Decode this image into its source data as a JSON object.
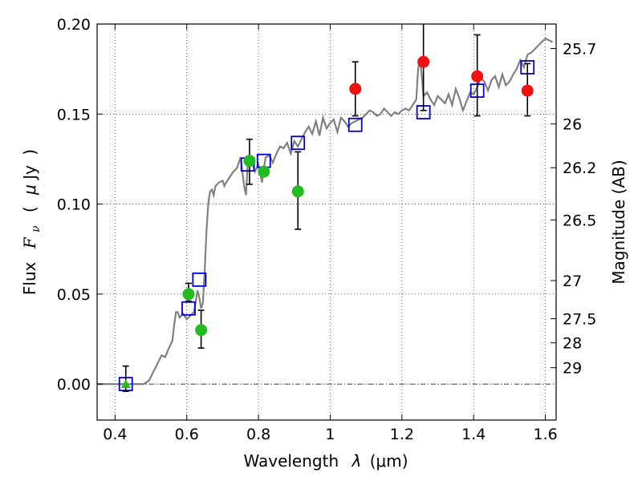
{
  "chart_data": {
    "type": "scatter",
    "xlabel_prefix": "Wavelength",
    "xlabel_symbol": "λ",
    "xlabel_unit": "(μm)",
    "ylabel_prefix": "Flux",
    "ylabel_symbol": "F",
    "ylabel_subscript": "ν",
    "ylabel_unit_open": "(",
    "ylabel_unit_mu": "μ",
    "ylabel_unit_rest": "Jy",
    "ylabel_unit_close": ")",
    "y2label": "Magnitude (AB)",
    "xlim": [
      0.35,
      1.63
    ],
    "ylim": [
      -0.02,
      0.2
    ],
    "x_ticks": [
      {
        "value": 0.4,
        "label": "0.4"
      },
      {
        "value": 0.6,
        "label": "0.6"
      },
      {
        "value": 0.8,
        "label": "0.8"
      },
      {
        "value": 1.0,
        "label": "1"
      },
      {
        "value": 1.2,
        "label": "1.2"
      },
      {
        "value": 1.4,
        "label": "1.4"
      },
      {
        "value": 1.6,
        "label": "1.6"
      }
    ],
    "y_ticks": [
      {
        "value": 0.0,
        "label": "0.00"
      },
      {
        "value": 0.05,
        "label": "0.05"
      },
      {
        "value": 0.1,
        "label": "0.10"
      },
      {
        "value": 0.15,
        "label": "0.15"
      },
      {
        "value": 0.2,
        "label": "0.20"
      }
    ],
    "mag_ticks": [
      {
        "value": 0.1864,
        "label": "25.7"
      },
      {
        "value": 0.1445,
        "label": "26"
      },
      {
        "value": 0.1202,
        "label": "26.2"
      },
      {
        "value": 0.0912,
        "label": "26.5"
      },
      {
        "value": 0.0575,
        "label": "27"
      },
      {
        "value": 0.0363,
        "label": "27.5"
      },
      {
        "value": 0.0229,
        "label": "28"
      },
      {
        "value": 0.0091,
        "label": "29"
      }
    ],
    "grid": true,
    "zero_line": true,
    "colors": {
      "model": "#808080",
      "template": "#0000cc",
      "optical": "#22bb22",
      "nir": "#ee1111",
      "errorbar": "#000000"
    },
    "series": [
      {
        "kind": "line",
        "color": "#808080",
        "points": [
          [
            0.35,
            0.0
          ],
          [
            0.45,
            0.0
          ],
          [
            0.48,
            0.0
          ],
          [
            0.495,
            0.002
          ],
          [
            0.51,
            0.008
          ],
          [
            0.52,
            0.012
          ],
          [
            0.53,
            0.016
          ],
          [
            0.54,
            0.015
          ],
          [
            0.55,
            0.02
          ],
          [
            0.56,
            0.024
          ],
          [
            0.565,
            0.033
          ],
          [
            0.57,
            0.04
          ],
          [
            0.575,
            0.04
          ],
          [
            0.58,
            0.037
          ],
          [
            0.59,
            0.039
          ],
          [
            0.6,
            0.036
          ],
          [
            0.61,
            0.038
          ],
          [
            0.62,
            0.04
          ],
          [
            0.625,
            0.046
          ],
          [
            0.63,
            0.052
          ],
          [
            0.635,
            0.048
          ],
          [
            0.64,
            0.042
          ],
          [
            0.645,
            0.045
          ],
          [
            0.65,
            0.063
          ],
          [
            0.655,
            0.085
          ],
          [
            0.66,
            0.1
          ],
          [
            0.665,
            0.107
          ],
          [
            0.67,
            0.108
          ],
          [
            0.675,
            0.105
          ],
          [
            0.68,
            0.11
          ],
          [
            0.69,
            0.112
          ],
          [
            0.7,
            0.113
          ],
          [
            0.705,
            0.11
          ],
          [
            0.71,
            0.112
          ],
          [
            0.72,
            0.115
          ],
          [
            0.73,
            0.118
          ],
          [
            0.74,
            0.12
          ],
          [
            0.75,
            0.126
          ],
          [
            0.76,
            0.11
          ],
          [
            0.765,
            0.105
          ],
          [
            0.77,
            0.122
          ],
          [
            0.78,
            0.125
          ],
          [
            0.79,
            0.118
          ],
          [
            0.8,
            0.122
          ],
          [
            0.81,
            0.112
          ],
          [
            0.815,
            0.12
          ],
          [
            0.82,
            0.126
          ],
          [
            0.83,
            0.127
          ],
          [
            0.84,
            0.123
          ],
          [
            0.85,
            0.128
          ],
          [
            0.86,
            0.132
          ],
          [
            0.87,
            0.131
          ],
          [
            0.88,
            0.134
          ],
          [
            0.89,
            0.128
          ],
          [
            0.9,
            0.135
          ],
          [
            0.91,
            0.132
          ],
          [
            0.92,
            0.136
          ],
          [
            0.93,
            0.14
          ],
          [
            0.94,
            0.143
          ],
          [
            0.95,
            0.139
          ],
          [
            0.96,
            0.146
          ],
          [
            0.97,
            0.138
          ],
          [
            0.98,
            0.148
          ],
          [
            0.99,
            0.142
          ],
          [
            1.0,
            0.145
          ],
          [
            1.01,
            0.147
          ],
          [
            1.02,
            0.14
          ],
          [
            1.03,
            0.148
          ],
          [
            1.04,
            0.146
          ],
          [
            1.05,
            0.143
          ],
          [
            1.06,
            0.145
          ],
          [
            1.07,
            0.146
          ],
          [
            1.08,
            0.147
          ],
          [
            1.09,
            0.148
          ],
          [
            1.1,
            0.15
          ],
          [
            1.11,
            0.152
          ],
          [
            1.12,
            0.151
          ],
          [
            1.13,
            0.149
          ],
          [
            1.14,
            0.15
          ],
          [
            1.15,
            0.153
          ],
          [
            1.16,
            0.151
          ],
          [
            1.17,
            0.149
          ],
          [
            1.18,
            0.151
          ],
          [
            1.19,
            0.15
          ],
          [
            1.2,
            0.152
          ],
          [
            1.21,
            0.153
          ],
          [
            1.22,
            0.152
          ],
          [
            1.23,
            0.155
          ],
          [
            1.24,
            0.158
          ],
          [
            1.245,
            0.175
          ],
          [
            1.25,
            0.181
          ],
          [
            1.255,
            0.172
          ],
          [
            1.26,
            0.16
          ],
          [
            1.27,
            0.162
          ],
          [
            1.28,
            0.158
          ],
          [
            1.29,
            0.155
          ],
          [
            1.3,
            0.16
          ],
          [
            1.31,
            0.158
          ],
          [
            1.32,
            0.156
          ],
          [
            1.33,
            0.161
          ],
          [
            1.34,
            0.155
          ],
          [
            1.35,
            0.164
          ],
          [
            1.36,
            0.159
          ],
          [
            1.37,
            0.152
          ],
          [
            1.38,
            0.157
          ],
          [
            1.39,
            0.162
          ],
          [
            1.4,
            0.161
          ],
          [
            1.41,
            0.165
          ],
          [
            1.42,
            0.17
          ],
          [
            1.43,
            0.168
          ],
          [
            1.44,
            0.163
          ],
          [
            1.45,
            0.169
          ],
          [
            1.46,
            0.171
          ],
          [
            1.47,
            0.165
          ],
          [
            1.48,
            0.172
          ],
          [
            1.49,
            0.166
          ],
          [
            1.5,
            0.168
          ],
          [
            1.51,
            0.172
          ],
          [
            1.52,
            0.175
          ],
          [
            1.53,
            0.18
          ],
          [
            1.54,
            0.176
          ],
          [
            1.55,
            0.183
          ],
          [
            1.56,
            0.184
          ],
          [
            1.57,
            0.186
          ],
          [
            1.58,
            0.188
          ],
          [
            1.59,
            0.19
          ],
          [
            1.6,
            0.192
          ],
          [
            1.61,
            0.191
          ],
          [
            1.62,
            0.19
          ]
        ]
      },
      {
        "kind": "square",
        "color": "#0000cc",
        "points": [
          [
            0.43,
            0.0
          ],
          [
            0.605,
            0.042
          ],
          [
            0.635,
            0.058
          ],
          [
            0.77,
            0.122
          ],
          [
            0.815,
            0.124
          ],
          [
            0.91,
            0.134
          ],
          [
            1.07,
            0.144
          ],
          [
            1.26,
            0.151
          ],
          [
            1.41,
            0.163
          ],
          [
            1.55,
            0.176
          ]
        ]
      },
      {
        "kind": "circle",
        "color": "#22bb22",
        "points": [
          {
            "x": 0.605,
            "y": 0.05,
            "lo": 0.046,
            "hi": 0.056
          },
          {
            "x": 0.64,
            "y": 0.03,
            "lo": 0.02,
            "hi": 0.041
          },
          {
            "x": 0.775,
            "y": 0.124,
            "lo": 0.111,
            "hi": 0.136
          },
          {
            "x": 0.815,
            "y": 0.118,
            "lo": null,
            "hi": null
          },
          {
            "x": 0.91,
            "y": 0.107,
            "lo": 0.086,
            "hi": 0.129
          }
        ]
      },
      {
        "kind": "triangle",
        "color": "#22bb22",
        "points": [
          {
            "x": 0.43,
            "y": 0.0,
            "lo": -0.004,
            "hi": 0.01
          }
        ]
      },
      {
        "kind": "circle",
        "color": "#ee1111",
        "points": [
          {
            "x": 1.07,
            "y": 0.164,
            "lo": 0.149,
            "hi": 0.179
          },
          {
            "x": 1.26,
            "y": 0.179,
            "lo": 0.152,
            "hi": 0.206
          },
          {
            "x": 1.41,
            "y": 0.171,
            "lo": 0.149,
            "hi": 0.194
          },
          {
            "x": 1.55,
            "y": 0.163,
            "lo": 0.149,
            "hi": 0.178
          }
        ]
      }
    ]
  }
}
